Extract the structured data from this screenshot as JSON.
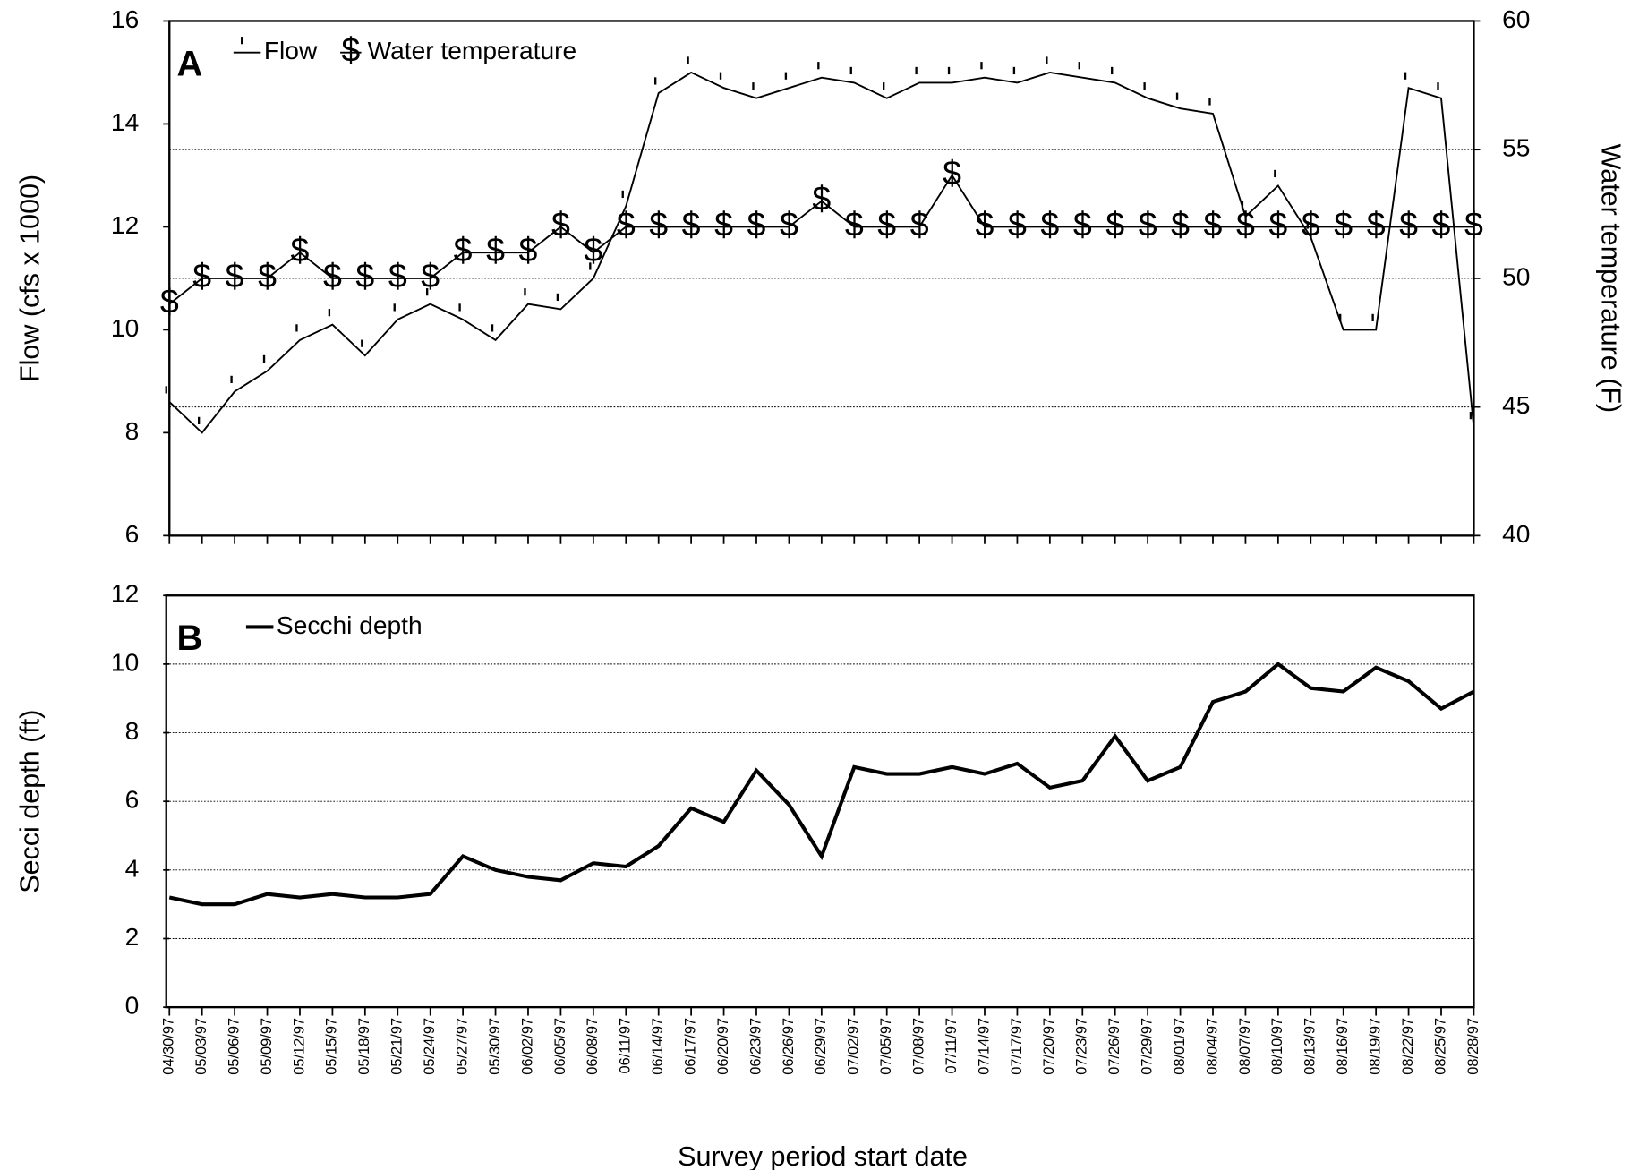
{
  "chart_data": [
    {
      "type": "line",
      "label": "A",
      "ylabel": "Flow (cfs x 1000)",
      "y2label": "Water temperature (F)",
      "ylim": [
        6,
        16
      ],
      "yticks": [
        6,
        8,
        10,
        12,
        14,
        16
      ],
      "y2lim": [
        40,
        60
      ],
      "y2ticks": [
        40,
        45,
        50,
        55,
        60
      ],
      "grid": "y2",
      "series": [
        {
          "name": "Flow",
          "color": "#000000",
          "marker": "tick",
          "values": [
            8.6,
            8.0,
            8.8,
            9.2,
            9.8,
            10.1,
            9.5,
            10.2,
            10.5,
            10.2,
            9.8,
            10.5,
            10.4,
            11.0,
            12.4,
            14.6,
            15.0,
            14.7,
            14.5,
            14.7,
            14.9,
            14.8,
            14.5,
            14.8,
            14.8,
            14.9,
            14.8,
            15.0,
            14.9,
            14.8,
            14.5,
            14.3,
            14.2,
            12.2,
            12.8,
            11.8,
            10.0,
            10.0,
            14.7,
            14.5,
            8.1
          ]
        },
        {
          "name": "Water temperature",
          "color": "#000000",
          "marker": "$",
          "axis": "y2",
          "values": [
            49,
            50,
            50,
            50,
            51,
            50,
            50,
            50,
            50,
            51,
            51,
            51,
            52,
            51,
            52,
            52,
            52,
            52,
            52,
            52,
            53,
            52,
            52,
            52,
            54,
            52,
            52,
            52,
            52,
            52,
            52,
            52,
            52,
            52,
            52,
            52,
            52,
            52,
            52,
            52,
            52
          ]
        }
      ]
    },
    {
      "type": "line",
      "label": "B",
      "ylabel": "Secci depth (ft)",
      "xlabel": "Survey period start date",
      "ylim": [
        0,
        12
      ],
      "yticks": [
        0,
        2,
        4,
        6,
        8,
        10,
        12
      ],
      "grid": "y",
      "categories": [
        "04/30/97",
        "05/03/97",
        "05/06/97",
        "05/09/97",
        "05/12/97",
        "05/15/97",
        "05/18/97",
        "05/21/97",
        "05/24/97",
        "05/27/97",
        "05/30/97",
        "06/02/97",
        "06/05/97",
        "06/08/97",
        "06/11/97",
        "06/14/97",
        "06/17/97",
        "06/20/97",
        "06/23/97",
        "06/26/97",
        "06/29/97",
        "07/02/97",
        "07/05/97",
        "07/08/97",
        "07/11/97",
        "07/14/97",
        "07/17/97",
        "07/20/97",
        "07/23/97",
        "07/26/97",
        "07/29/97",
        "08/01/97",
        "08/04/97",
        "08/07/97",
        "08/10/97",
        "08/13/97",
        "08/16/97",
        "08/19/97",
        "08/22/97",
        "08/25/97",
        "08/28/97"
      ],
      "series": [
        {
          "name": "Secchi depth",
          "color": "#000000",
          "values": [
            3.2,
            3.0,
            3.0,
            3.3,
            3.2,
            3.3,
            3.2,
            3.2,
            3.3,
            4.4,
            4.0,
            3.8,
            3.7,
            4.2,
            4.1,
            4.7,
            5.8,
            5.4,
            6.9,
            5.9,
            4.4,
            7.0,
            6.8,
            6.8,
            7.0,
            6.8,
            7.1,
            6.4,
            6.6,
            7.9,
            6.6,
            7.0,
            8.9,
            9.2,
            10.0,
            9.3,
            9.2,
            9.9,
            9.5,
            8.7,
            9.2
          ]
        }
      ]
    }
  ]
}
